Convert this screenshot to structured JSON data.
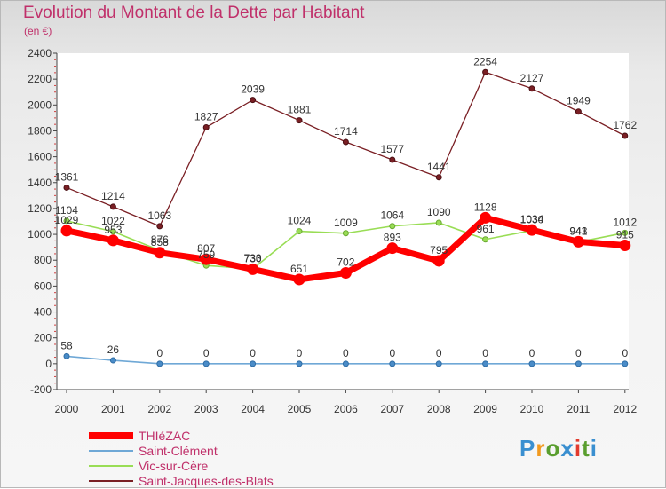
{
  "title": "Evolution du Montant de la Dette par Habitant",
  "subtitle": "(en €)",
  "logo": {
    "text": "Proxiti",
    "colors": [
      "#3a8fd0",
      "#f29a1f",
      "#5a9e2f",
      "#3a8fd0",
      "#e23b2e",
      "#5a9e2f",
      "#3a8fd0"
    ]
  },
  "chart_data": {
    "type": "line",
    "title": "Evolution du Montant de la Dette par Habitant",
    "subtitle": "(en €)",
    "xlabel": "",
    "ylabel": "",
    "x": [
      2000,
      2001,
      2002,
      2003,
      2004,
      2005,
      2006,
      2007,
      2008,
      2009,
      2010,
      2011,
      2012
    ],
    "ylim": [
      -200,
      2400
    ],
    "yticks": [
      -200,
      0,
      200,
      400,
      600,
      800,
      1000,
      1200,
      1400,
      1600,
      1800,
      2000,
      2200,
      2400
    ],
    "grid": false,
    "legend": "bottom-left",
    "series": [
      {
        "name": "THIéZAC",
        "color": "#ff0000",
        "values": [
          1029,
          953,
          858,
          807,
          730,
          651,
          702,
          893,
          795,
          1128,
          1034,
          943,
          915
        ]
      },
      {
        "name": "Saint-Clément",
        "color": "#6fa8d6",
        "values": [
          58,
          26,
          0,
          0,
          0,
          0,
          0,
          0,
          0,
          0,
          0,
          0,
          0
        ]
      },
      {
        "name": "Vic-sur-Cère",
        "color": "#99dd55",
        "values": [
          1104,
          1022,
          876,
          759,
          733,
          1024,
          1009,
          1064,
          1090,
          961,
          1030,
          941,
          1012
        ]
      },
      {
        "name": "Saint-Jacques-des-Blats",
        "color": "#7a1f24",
        "values": [
          1361,
          1214,
          1063,
          1827,
          2039,
          1881,
          1714,
          1577,
          1441,
          2254,
          2127,
          1949,
          1762
        ]
      }
    ]
  }
}
